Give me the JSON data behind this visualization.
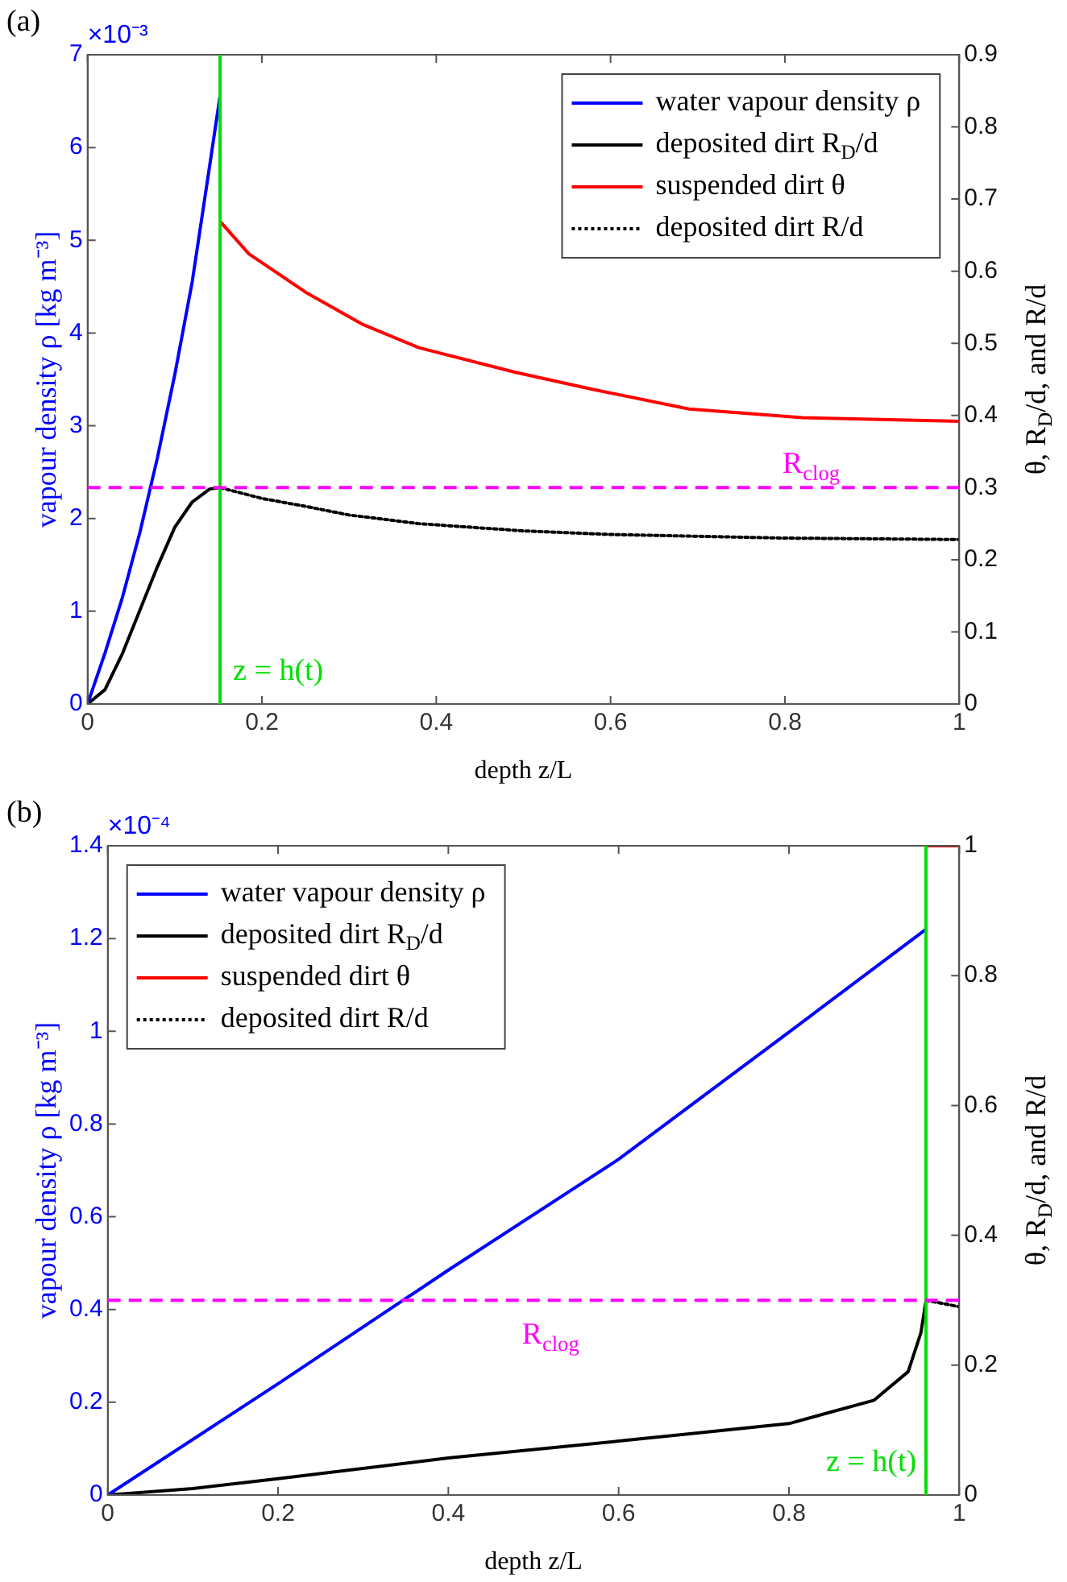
{
  "chart_data": [
    {
      "type": "line",
      "title": "(a)",
      "xlabel": "depth z/L",
      "ylabel": "vapour density ρ [kg m⁻³]",
      "y2label": "θ, R$_{D}$/d, and R/d",
      "annotations": [
        "×10⁻³"
      ],
      "xlim": [
        0,
        1
      ],
      "xticks": [
        0,
        0.2,
        0.4,
        0.6,
        0.8,
        1
      ],
      "ylim": [
        0,
        7
      ],
      "yticks": [
        0,
        1,
        2,
        3,
        4,
        5,
        6,
        7
      ],
      "y2lim": [
        0,
        0.9
      ],
      "y2ticks": [
        0,
        0.1,
        0.2,
        0.3,
        0.4,
        0.5,
        0.6,
        0.7,
        0.8,
        0.9
      ],
      "grid": false,
      "legend": "top right",
      "ref_lines": [
        {
          "axis": "x",
          "value": 0.152,
          "label": "z = h(t)",
          "color": "#00e000",
          "line_style": "solid"
        },
        {
          "axis": "y2",
          "value": 0.3,
          "label": "R$_{clog}$",
          "color": "#ff00ff",
          "line_style": "dashed"
        }
      ],
      "series": [
        {
          "name": "water vapour density ρ",
          "color": "#0000ff",
          "axis": "y",
          "line_style": "solid",
          "x": [
            0,
            0.02,
            0.04,
            0.06,
            0.08,
            0.1,
            0.12,
            0.14,
            0.152
          ],
          "values": [
            0,
            0.55,
            1.15,
            1.85,
            2.65,
            3.55,
            4.55,
            5.8,
            6.56
          ]
        },
        {
          "name": "deposited dirt R$_{D}$/d",
          "color": "#000000",
          "axis": "y2",
          "line_style": "solid",
          "x": [
            0,
            0.02,
            0.04,
            0.06,
            0.08,
            0.1,
            0.12,
            0.14,
            0.152
          ],
          "values": [
            0,
            0.02,
            0.07,
            0.13,
            0.19,
            0.245,
            0.28,
            0.298,
            0.3
          ]
        },
        {
          "name": "suspended dirt θ",
          "color": "#ff0000",
          "axis": "y2",
          "line_style": "solid",
          "x": [
            0.152,
            0.185,
            0.25,
            0.316,
            0.38,
            0.49,
            0.58,
            0.69,
            0.82,
            1
          ],
          "values": [
            0.669,
            0.624,
            0.571,
            0.526,
            0.494,
            0.46,
            0.436,
            0.409,
            0.397,
            0.392
          ]
        },
        {
          "name": "deposited dirt R/d",
          "color": "#000000",
          "axis": "y2",
          "line_style": "dotted",
          "x": [
            0.152,
            0.2,
            0.25,
            0.3,
            0.38,
            0.5,
            0.6,
            0.8,
            1
          ],
          "values": [
            0.3,
            0.285,
            0.274,
            0.262,
            0.25,
            0.24,
            0.235,
            0.23,
            0.228
          ]
        }
      ]
    },
    {
      "type": "line",
      "title": "(b)",
      "xlabel": "depth z/L",
      "ylabel": "vapour density ρ [kg m⁻³]",
      "y2label": "θ, R$_{D}$/d, and R/d",
      "annotations": [
        "×10⁻⁴"
      ],
      "xlim": [
        0,
        1
      ],
      "xticks": [
        0,
        0.2,
        0.4,
        0.6,
        0.8,
        1
      ],
      "ylim": [
        0,
        1.4
      ],
      "yticks": [
        0,
        0.2,
        0.4,
        0.6,
        0.8,
        1,
        1.2,
        1.4
      ],
      "y2lim": [
        0,
        1
      ],
      "y2ticks": [
        0,
        0.2,
        0.4,
        0.6,
        0.8,
        1
      ],
      "grid": false,
      "legend": "top left",
      "ref_lines": [
        {
          "axis": "x",
          "value": 0.961,
          "label": "z = h(t)",
          "color": "#00e000",
          "line_style": "solid"
        },
        {
          "axis": "y2",
          "value": 0.3,
          "label": "R$_{clog}$",
          "color": "#ff00ff",
          "line_style": "dashed"
        }
      ],
      "series": [
        {
          "name": "water vapour density ρ",
          "color": "#0000ff",
          "axis": "y",
          "line_style": "solid",
          "x": [
            0,
            0.2,
            0.4,
            0.6,
            0.8,
            0.961
          ],
          "values": [
            0,
            0.24,
            0.485,
            0.724,
            0.998,
            1.22
          ]
        },
        {
          "name": "deposited dirt R$_{D}$/d",
          "color": "#000000",
          "axis": "y2",
          "line_style": "solid",
          "x": [
            0,
            0.1,
            0.2,
            0.4,
            0.6,
            0.8,
            0.9,
            0.94,
            0.955,
            0.961
          ],
          "values": [
            0,
            0.01,
            0.025,
            0.057,
            0.083,
            0.11,
            0.146,
            0.19,
            0.25,
            0.3
          ]
        },
        {
          "name": "suspended dirt θ",
          "color": "#ff0000",
          "axis": "y2",
          "line_style": "solid",
          "x": [
            0.961,
            1
          ],
          "values": [
            1,
            1
          ]
        },
        {
          "name": "deposited dirt R/d",
          "color": "#000000",
          "axis": "y2",
          "line_style": "dotted",
          "x": [
            0.961,
            1
          ],
          "values": [
            0.3,
            0.29
          ]
        }
      ]
    }
  ]
}
